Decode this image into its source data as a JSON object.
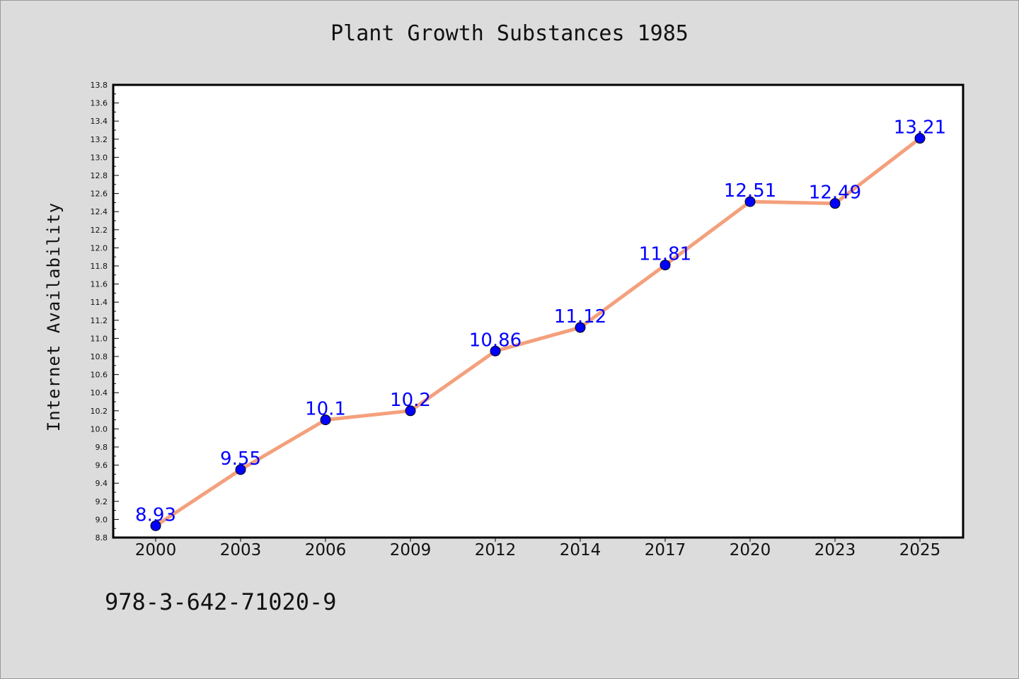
{
  "page": {
    "footer_text": "978-3-642-71020-9"
  },
  "colors": {
    "background": "#dcdcdc",
    "plot_background": "#ffffff",
    "line": "#f4a07c",
    "marker": "#0000ff",
    "data_label": "#0000ff"
  },
  "chart_data": {
    "type": "line",
    "title": "Plant Growth Substances 1985",
    "xlabel": "",
    "ylabel": "Internet Availability",
    "categories": [
      "2000",
      "2003",
      "2006",
      "2009",
      "2012",
      "2014",
      "2017",
      "2020",
      "2023",
      "2025"
    ],
    "series": [
      {
        "values": [
          8.93,
          9.55,
          10.1,
          10.2,
          10.86,
          11.12,
          11.81,
          12.51,
          12.49,
          13.21
        ],
        "data_labels": [
          "8.93",
          "9.55",
          "10.1",
          "10.2",
          "10.86",
          "11.12",
          "11.81",
          "12.51",
          "12.49",
          "13.21"
        ]
      }
    ],
    "ylim": [
      8.8,
      13.8
    ],
    "yticks": [
      "8.8",
      "9.0",
      "9.2",
      "9.4",
      "9.6",
      "9.8",
      "10.0",
      "10.2",
      "10.4",
      "10.6",
      "10.8",
      "11.0",
      "11.2",
      "11.4",
      "11.6",
      "11.8",
      "12.0",
      "12.2",
      "12.4",
      "12.6",
      "12.8",
      "13.0",
      "13.2",
      "13.4",
      "13.6",
      "13.8"
    ],
    "grid": false,
    "legend": "none"
  }
}
